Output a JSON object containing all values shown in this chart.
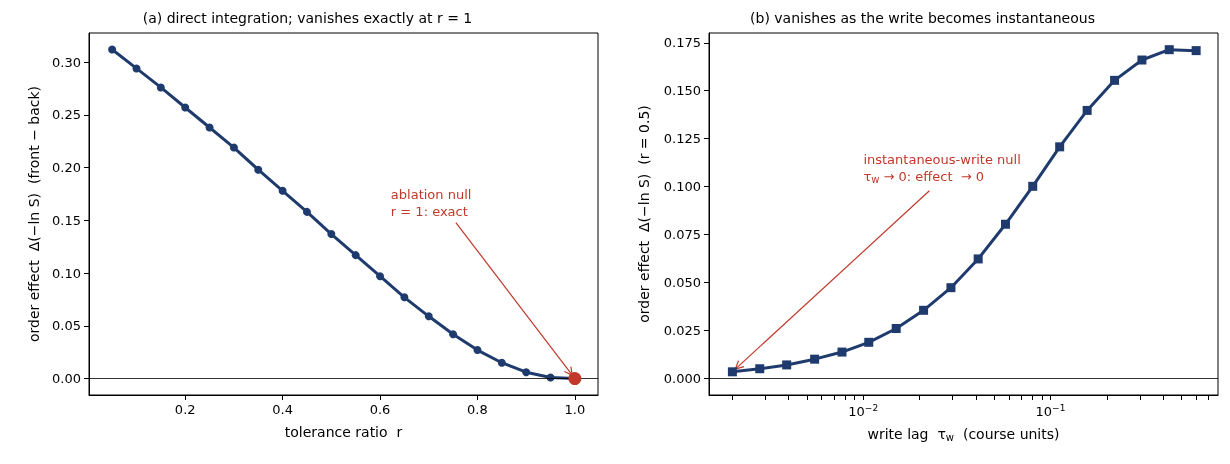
{
  "chart_data": [
    {
      "type": "line",
      "title": "(a) direct integration; vanishes exactly at r = 1",
      "xlabel": "tolerance ratio  r",
      "ylabel": "order effect  Δ(−ln S)  (front − back)",
      "x": [
        0.05,
        0.1,
        0.15,
        0.2,
        0.25,
        0.3,
        0.35,
        0.4,
        0.45,
        0.5,
        0.55,
        0.6,
        0.65,
        0.7,
        0.75,
        0.8,
        0.85,
        0.9,
        0.95,
        1.0
      ],
      "series": [
        {
          "color": "#1f3b6e",
          "values": [
            0.312,
            0.294,
            0.276,
            0.257,
            0.238,
            0.219,
            0.198,
            0.178,
            0.158,
            0.137,
            0.117,
            0.097,
            0.077,
            0.059,
            0.042,
            0.027,
            0.015,
            0.006,
            0.001,
            0.0
          ]
        },
        {
          "type": "scatter",
          "color": "#c0392b",
          "x": [
            1.0
          ],
          "values": [
            0.0
          ]
        }
      ],
      "marker": "circle",
      "xlim": [
        0.0025,
        1.0475
      ],
      "xticks": [
        0.2,
        0.4,
        0.6,
        0.8,
        {
          "value": 1.0,
          "label": "1.0"
        }
      ],
      "ylim": [
        -0.0156,
        0.3276
      ],
      "yticks": [
        {
          "value": 0,
          "label": "0.00"
        },
        0.05,
        {
          "value": 0.1,
          "label": "0.10"
        },
        0.15,
        {
          "value": 0.2,
          "label": "0.20"
        },
        0.25,
        {
          "value": 0.3,
          "label": "0.30"
        }
      ],
      "ref_lines": [
        {
          "axis": "y",
          "value": 0,
          "color": "#000000"
        }
      ],
      "annotations": [
        {
          "text": "ablation null\nr = 1: exact",
          "x": 1.0,
          "y": 0.0
        }
      ]
    },
    {
      "type": "line",
      "title": "(b) vanishes as the write becomes instantaneous",
      "xlabel": "write lag  τ$_{w}$  (course units)",
      "ylabel": "order effect  Δ(−ln S)  (r = 0.5)",
      "x": [
        0.002,
        0.0028,
        0.0039,
        0.0055,
        0.0077,
        0.0107,
        0.015,
        0.021,
        0.0294,
        0.0411,
        0.0575,
        0.0804,
        0.112,
        0.157,
        0.22,
        0.308,
        0.431,
        0.6
      ],
      "series": [
        {
          "color": "#1f3b6e",
          "values": [
            0.0033,
            0.0049,
            0.0069,
            0.0099,
            0.0136,
            0.0187,
            0.0259,
            0.0354,
            0.0472,
            0.0622,
            0.0803,
            0.1001,
            0.1207,
            0.1397,
            0.1554,
            0.166,
            0.1714,
            0.1709
          ]
        }
      ],
      "marker": "square",
      "log": "x",
      "xlim": [
        0.0015,
        0.785
      ],
      "xticks": [
        {
          "value": 0.002,
          "label": null
        },
        {
          "value": 0.003,
          "label": null
        },
        {
          "value": 0.004,
          "label": null
        },
        {
          "value": 0.005,
          "label": null
        },
        {
          "value": 0.006,
          "label": null
        },
        {
          "value": 0.007,
          "label": null
        },
        {
          "value": 0.008,
          "label": null
        },
        {
          "value": 0.009,
          "label": null
        },
        {
          "value": 0.01,
          "label": "10$^{−2}$"
        },
        {
          "value": 0.02,
          "label": null
        },
        {
          "value": 0.03,
          "label": null
        },
        {
          "value": 0.04,
          "label": null
        },
        {
          "value": 0.05,
          "label": null
        },
        {
          "value": 0.06,
          "label": null
        },
        {
          "value": 0.07,
          "label": null
        },
        {
          "value": 0.08,
          "label": null
        },
        {
          "value": 0.09,
          "label": null
        },
        {
          "value": 0.1,
          "label": "10$^{−1}$"
        },
        {
          "value": 0.2,
          "label": null
        },
        {
          "value": 0.3,
          "label": null
        },
        {
          "value": 0.4,
          "label": null
        },
        {
          "value": 0.5,
          "label": null
        },
        {
          "value": 0.6,
          "label": null
        },
        {
          "value": 0.7,
          "label": null
        }
      ],
      "ylim": [
        -0.0088,
        0.1801
      ],
      "yticks": [
        {
          "value": 0,
          "label": "0.000"
        },
        0.025,
        {
          "value": 0.05,
          "label": "0.050"
        },
        0.075,
        {
          "value": 0.1,
          "label": "0.100"
        },
        0.125,
        {
          "value": 0.15,
          "label": "0.150"
        },
        0.175
      ],
      "ref_lines": [
        {
          "axis": "y",
          "value": 0,
          "color": "#000000"
        }
      ],
      "annotations": [
        {
          "text": "instantaneous-write null\nτ$_{w}$ → 0: effect  → 0",
          "x": 0.002,
          "y": 0.0033
        }
      ]
    }
  ]
}
